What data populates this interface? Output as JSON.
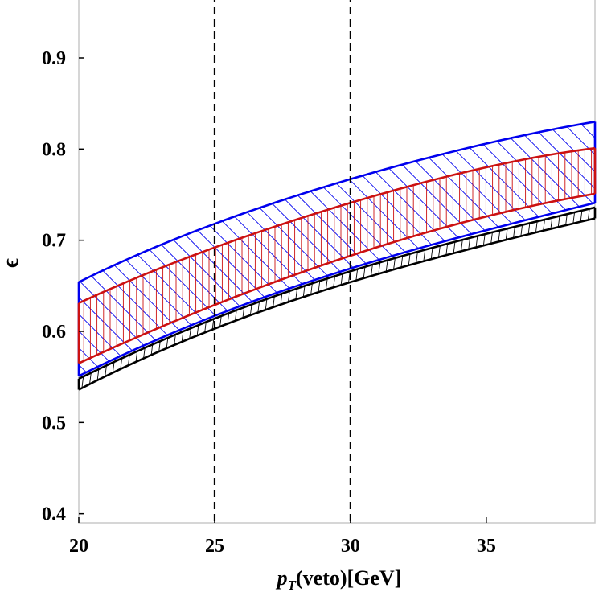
{
  "chart_data": {
    "type": "area",
    "title": "",
    "xlabel": {
      "main": "p",
      "sub": "T",
      "rest": "(veto)[GeV]"
    },
    "ylabel": "ϵ",
    "xlim": [
      20,
      39
    ],
    "ylim": [
      0.39,
      0.96
    ],
    "xticks": [
      20,
      25,
      30,
      35
    ],
    "xtick_labels": [
      "20",
      "25",
      "30",
      "35"
    ],
    "yticks": [
      0.4,
      0.5,
      0.6,
      0.7,
      0.8,
      0.9
    ],
    "ytick_labels": [
      "0.4",
      "0.5",
      "0.6",
      "0.7",
      "0.8",
      "0.9"
    ],
    "grid": false,
    "reference_lines": [
      {
        "x": 25,
        "style": "dashed",
        "color": "#000000"
      },
      {
        "x": 30,
        "style": "dashed",
        "color": "#000000"
      }
    ],
    "series": [
      {
        "color": "#0000ee",
        "hatch": "diagonal",
        "x": [
          20,
          25,
          30,
          35,
          39
        ],
        "lower": [
          0.551,
          0.617,
          0.669,
          0.711,
          0.741
        ],
        "upper": [
          0.654,
          0.718,
          0.767,
          0.806,
          0.83
        ]
      },
      {
        "color": "#cc1111",
        "hatch": "vertical",
        "x": [
          20,
          25,
          30,
          35,
          39
        ],
        "lower": [
          0.565,
          0.629,
          0.683,
          0.726,
          0.751
        ],
        "upper": [
          0.631,
          0.692,
          0.741,
          0.78,
          0.801
        ]
      },
      {
        "color": "#000000",
        "hatch": "horizontal",
        "x": [
          20,
          25,
          30,
          35,
          39
        ],
        "lower": [
          0.536,
          0.603,
          0.654,
          0.695,
          0.724
        ],
        "upper": [
          0.548,
          0.614,
          0.666,
          0.707,
          0.736
        ]
      }
    ]
  }
}
